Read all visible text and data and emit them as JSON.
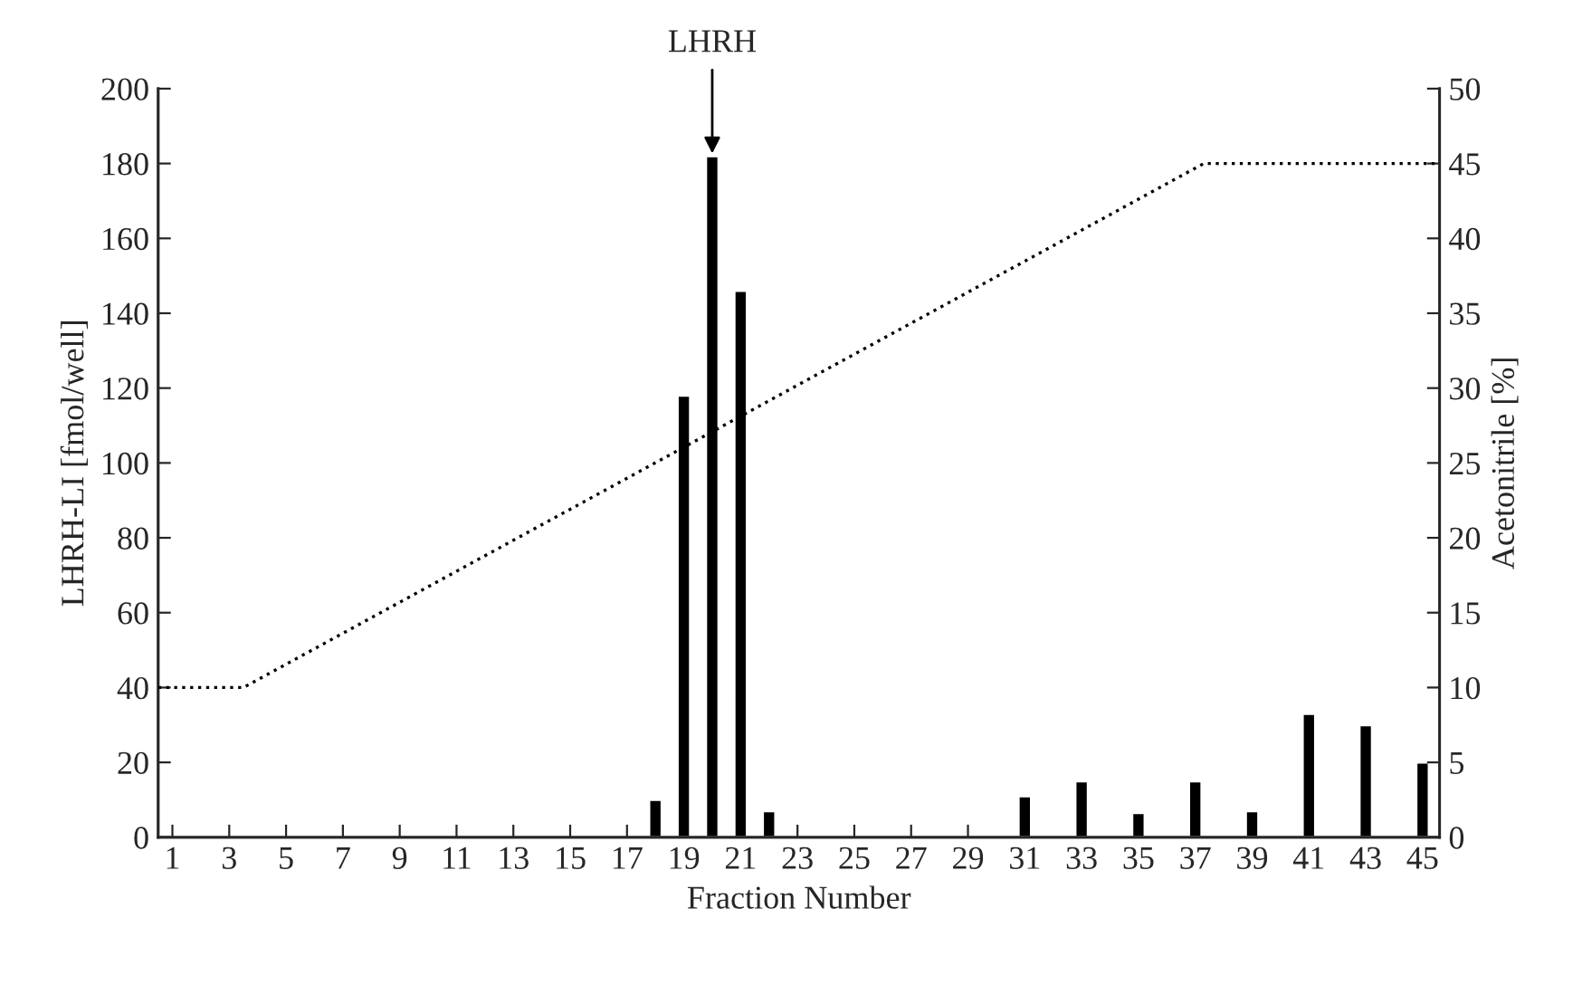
{
  "chart_data": {
    "type": "bar",
    "xlabel": "Fraction Number",
    "ylabel": "LHRH-LI [fmol/well]",
    "y2label": "Acetonitrile [%]",
    "xlim": [
      0.5,
      45.6
    ],
    "xticks": [
      1,
      3,
      5,
      7,
      9,
      11,
      13,
      15,
      17,
      19,
      21,
      23,
      25,
      27,
      29,
      31,
      33,
      35,
      37,
      39,
      41,
      43,
      45
    ],
    "ylim": [
      0,
      200
    ],
    "yticks": [
      0,
      20,
      40,
      60,
      80,
      100,
      120,
      140,
      160,
      180,
      200
    ],
    "y2lim": [
      0,
      50
    ],
    "y2ticks": [
      0,
      5,
      10,
      15,
      20,
      25,
      30,
      35,
      40,
      45,
      50
    ],
    "grid": false,
    "legend": false,
    "series": [
      {
        "color": "#000000",
        "x": [
          18,
          19,
          20,
          21,
          22,
          31,
          33,
          35,
          37,
          39,
          41,
          43,
          45
        ],
        "values": [
          10,
          118,
          182,
          146,
          7,
          11,
          15,
          6.5,
          15,
          7,
          33,
          30,
          20
        ]
      },
      {
        "type": "line",
        "axis": "y2",
        "color": "#000000",
        "line_style": "dotted",
        "x": [
          0.5,
          3.5,
          37.3,
          45.6
        ],
        "values": [
          10,
          10,
          45,
          45
        ]
      }
    ],
    "annotations": [
      {
        "text": "LHRH",
        "x": 20,
        "y": 182
      }
    ]
  }
}
